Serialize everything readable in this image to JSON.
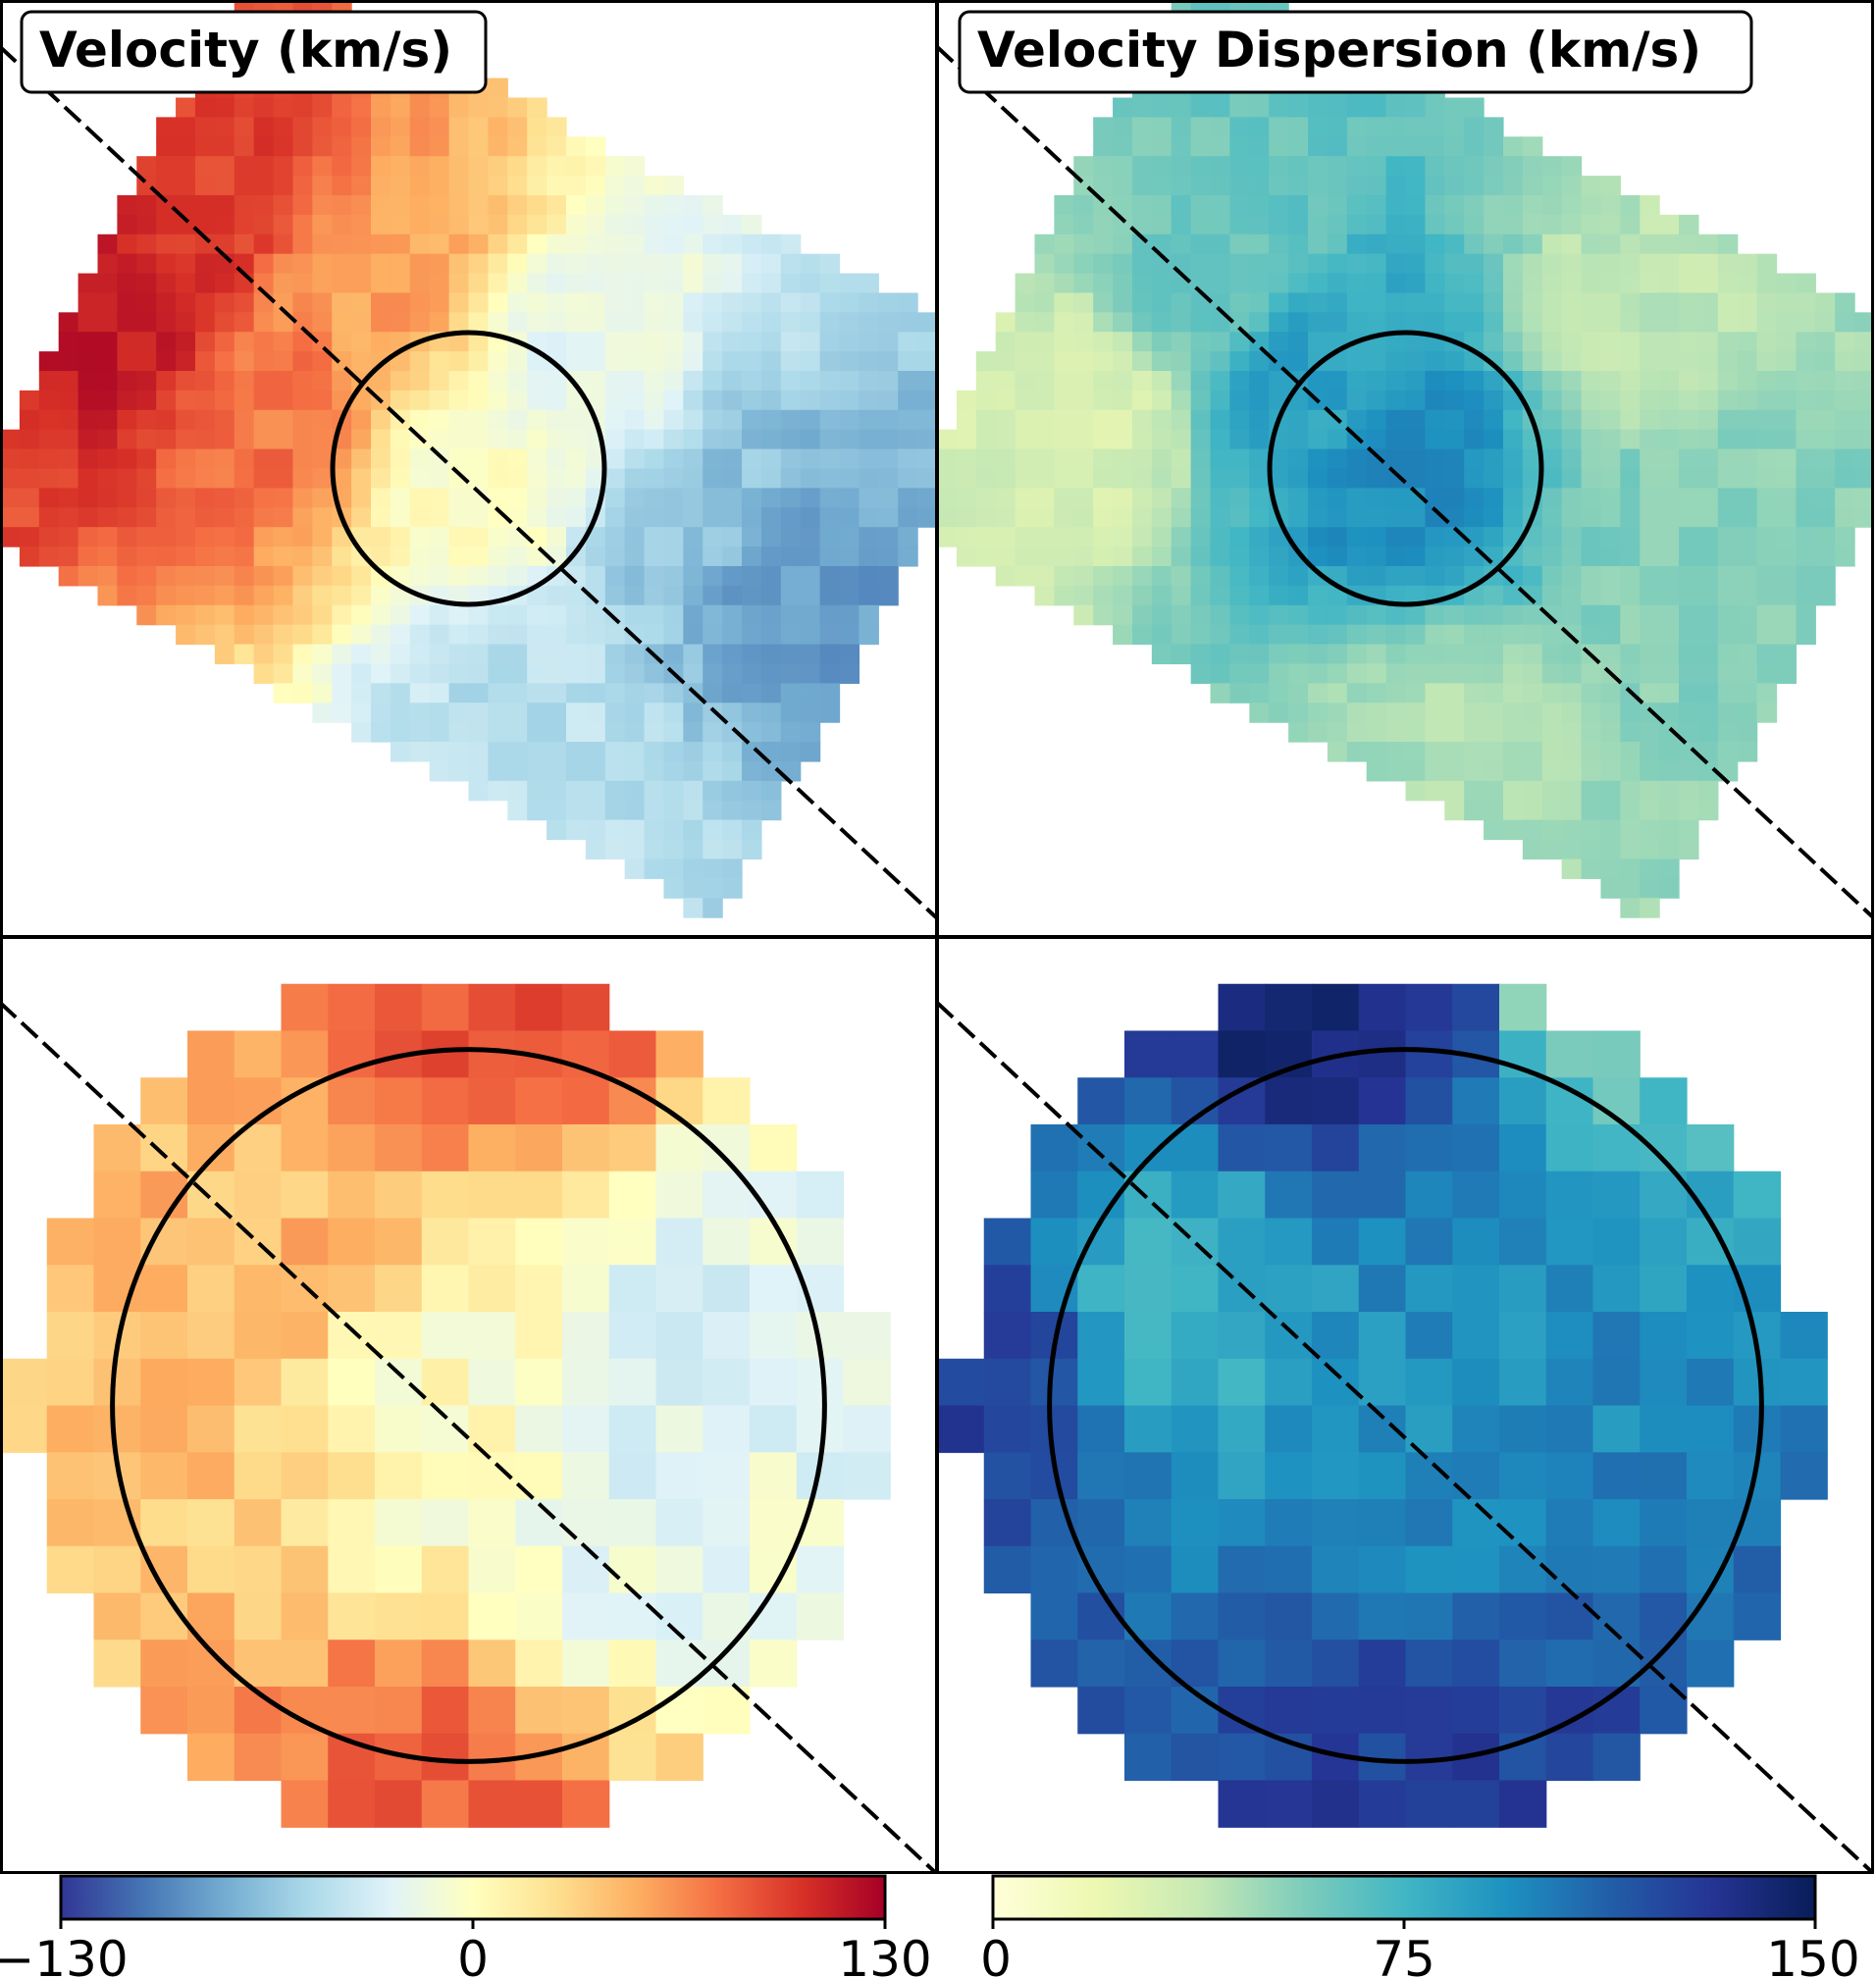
{
  "chart_data": [
    {
      "type": "heatmap",
      "panel": "top-left",
      "title": "Velocity (km/s)",
      "quantity": "line-of-sight velocity",
      "colormap": "RdYlBu_r",
      "clim": [
        -130,
        130
      ],
      "field_shape": "tilted rectangle",
      "gradient": "positive velocities toward upper-left, negative toward lower-right",
      "samples": [
        {
          "x": 0.12,
          "y": 0.35,
          "value": 115
        },
        {
          "x": 0.22,
          "y": 0.22,
          "value": 100
        },
        {
          "x": 0.3,
          "y": 0.45,
          "value": 75
        },
        {
          "x": 0.4,
          "y": 0.3,
          "value": 55
        },
        {
          "x": 0.5,
          "y": 0.5,
          "value": 0
        },
        {
          "x": 0.62,
          "y": 0.4,
          "value": -20
        },
        {
          "x": 0.55,
          "y": 0.75,
          "value": -45
        },
        {
          "x": 0.75,
          "y": 0.55,
          "value": -65
        },
        {
          "x": 0.85,
          "y": 0.62,
          "value": -85
        }
      ],
      "circle": {
        "cx": 0.5,
        "cy": 0.5,
        "r": 0.145
      },
      "dashed_line": "diagonal from upper-left to lower-right"
    },
    {
      "type": "heatmap",
      "panel": "top-right",
      "title": "Velocity Dispersion (km/s)",
      "quantity": "velocity dispersion",
      "colormap": "YlGnBu",
      "clim": [
        0,
        150
      ],
      "field_shape": "tilted rectangle",
      "gradient": "highest dispersion in the center (~95), lowest at edges (~30)",
      "samples": [
        {
          "x": 0.5,
          "y": 0.5,
          "value": 95
        },
        {
          "x": 0.4,
          "y": 0.4,
          "value": 85
        },
        {
          "x": 0.3,
          "y": 0.3,
          "value": 60
        },
        {
          "x": 0.15,
          "y": 0.45,
          "value": 30
        },
        {
          "x": 0.75,
          "y": 0.35,
          "value": 40
        },
        {
          "x": 0.8,
          "y": 0.55,
          "value": 55
        },
        {
          "x": 0.55,
          "y": 0.8,
          "value": 45
        }
      ],
      "circle": {
        "cx": 0.5,
        "cy": 0.5,
        "r": 0.145
      },
      "dashed_line": "diagonal from upper-left to lower-right"
    },
    {
      "type": "heatmap",
      "panel": "bottom-left",
      "title": "",
      "quantity": "line-of-sight velocity (zoomed central region)",
      "colormap": "RdYlBu_r",
      "clim": [
        -130,
        130
      ],
      "field_shape": "circular",
      "gradient": "positive velocities toward upper-left, negative toward lower-right",
      "samples": [
        {
          "x": 0.28,
          "y": 0.28,
          "value": 45
        },
        {
          "x": 0.5,
          "y": 0.05,
          "value": 90
        },
        {
          "x": 0.2,
          "y": 0.5,
          "value": 40
        },
        {
          "x": 0.5,
          "y": 0.5,
          "value": 0
        },
        {
          "x": 0.7,
          "y": 0.6,
          "value": -20
        },
        {
          "x": 0.75,
          "y": 0.45,
          "value": -25
        },
        {
          "x": 0.45,
          "y": 0.95,
          "value": 80
        }
      ],
      "circle": {
        "cx": 0.5,
        "cy": 0.5,
        "r": 0.38
      },
      "dashed_line": "diagonal from upper-left to lower-right"
    },
    {
      "type": "heatmap",
      "panel": "bottom-right",
      "title": "",
      "quantity": "velocity dispersion (zoomed central region)",
      "colormap": "YlGnBu",
      "clim": [
        0,
        150
      ],
      "field_shape": "circular",
      "gradient": "mostly 80-115 km/s across the field",
      "samples": [
        {
          "x": 0.4,
          "y": 0.05,
          "value": 140
        },
        {
          "x": 0.55,
          "y": 0.05,
          "value": 130
        },
        {
          "x": 0.65,
          "y": 0.05,
          "value": 50
        },
        {
          "x": 0.5,
          "y": 0.5,
          "value": 95
        },
        {
          "x": 0.25,
          "y": 0.4,
          "value": 80
        },
        {
          "x": 0.05,
          "y": 0.48,
          "value": 125
        },
        {
          "x": 0.5,
          "y": 0.95,
          "value": 125
        }
      ],
      "circle": {
        "cx": 0.5,
        "cy": 0.5,
        "r": 0.38
      },
      "dashed_line": "diagonal from upper-left to lower-right"
    }
  ],
  "colorbars": [
    {
      "name": "velocity-colorbar",
      "colormap": "RdYlBu_r",
      "min": -130,
      "max": 130,
      "ticks": [
        -130,
        0,
        130
      ],
      "tick_labels": [
        "−130",
        "0",
        "130"
      ]
    },
    {
      "name": "dispersion-colorbar",
      "colormap": "YlGnBu",
      "min": 0,
      "max": 150,
      "ticks": [
        0,
        75,
        150
      ],
      "tick_labels": [
        "0",
        "75",
        "150"
      ]
    }
  ],
  "colors": {
    "RdYlBu_r": [
      "#313695",
      "#4575b4",
      "#74add1",
      "#abd9e9",
      "#e0f3f8",
      "#ffffbf",
      "#fee090",
      "#fdae61",
      "#f46d43",
      "#d73027",
      "#a50026"
    ],
    "YlGnBu": [
      "#ffffd9",
      "#edf8b1",
      "#c7e9b4",
      "#7fcdbb",
      "#41b6c4",
      "#1d91c0",
      "#225ea8",
      "#253494",
      "#081d58"
    ]
  }
}
